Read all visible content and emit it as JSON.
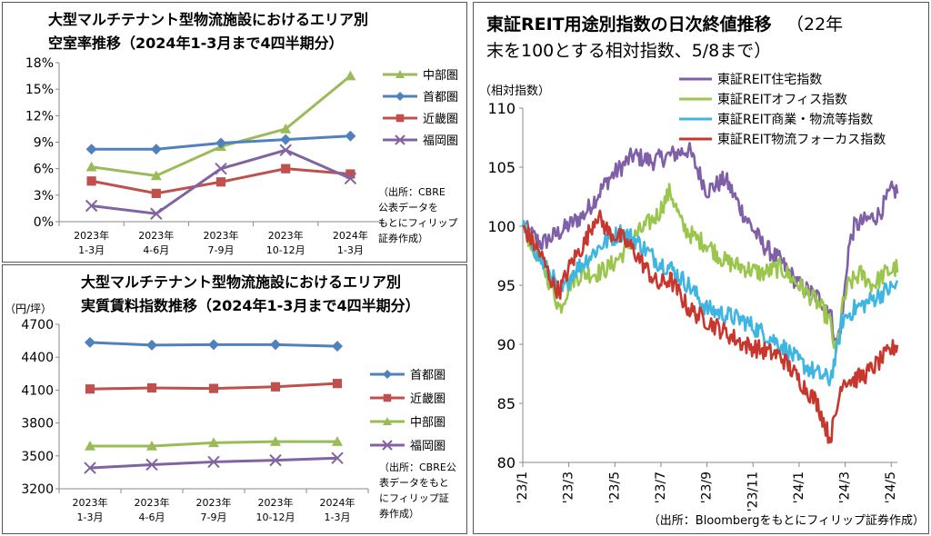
{
  "chart_data": [
    {
      "type": "line",
      "title": "大型マルチテナント型物流施設におけるエリア別",
      "subtitle": "空室率推移（2024年1-3月まで4四半期分）",
      "categories": [
        [
          "2023年",
          "1-3月"
        ],
        [
          "2023年",
          "4-6月"
        ],
        [
          "2023年",
          "7-9月"
        ],
        [
          "2023年",
          "10-12月"
        ],
        [
          "2024年",
          "1-3月"
        ]
      ],
      "y_ticks": [
        "18%",
        "15%",
        "12%",
        "9%",
        "6%",
        "3%",
        "0%"
      ],
      "ylim": [
        0,
        18
      ],
      "source": [
        "（出所：CBRE",
        "公表データを",
        "もとにフィリップ",
        "証券作成）"
      ],
      "series": [
        {
          "name": "中部圏",
          "color": "#9BBB59",
          "marker": "triangle",
          "values": [
            6.2,
            5.2,
            8.5,
            10.5,
            16.5
          ]
        },
        {
          "name": "首都圏",
          "color": "#4F81BD",
          "marker": "diamond",
          "values": [
            8.2,
            8.2,
            8.9,
            9.3,
            9.7
          ]
        },
        {
          "name": "近畿圏",
          "color": "#C0504D",
          "marker": "square",
          "values": [
            4.6,
            3.2,
            4.5,
            6.0,
            5.4
          ]
        },
        {
          "name": "福岡圏",
          "color": "#8064A2",
          "marker": "x",
          "values": [
            1.8,
            0.9,
            6.0,
            8.1,
            4.9
          ]
        }
      ]
    },
    {
      "type": "line",
      "title": "大型マルチテナント型物流施設におけるエリア別",
      "subtitle": "実質賃料指数推移（2024年1-3月まで4四半期分）",
      "ylabel": "（円/坪）",
      "categories": [
        [
          "2023年",
          "1-3月"
        ],
        [
          "2023年",
          "4-6月"
        ],
        [
          "2023年",
          "7-9月"
        ],
        [
          "2023年",
          "10-12月"
        ],
        [
          "2024年",
          "1-3月"
        ]
      ],
      "y_ticks": [
        "4700",
        "4400",
        "4100",
        "3800",
        "3500",
        "3200"
      ],
      "ylim": [
        3200,
        4700
      ],
      "source": [
        "（出所：CBRE公",
        "表データをもと",
        "にフィリップ証",
        "券作成）"
      ],
      "series": [
        {
          "name": "首都圏",
          "color": "#4F81BD",
          "marker": "diamond",
          "values": [
            4535,
            4510,
            4515,
            4515,
            4500
          ]
        },
        {
          "name": "近畿圏",
          "color": "#C0504D",
          "marker": "square",
          "values": [
            4110,
            4120,
            4115,
            4130,
            4160
          ]
        },
        {
          "name": "中部圏",
          "color": "#9BBB59",
          "marker": "triangle",
          "values": [
            3590,
            3590,
            3620,
            3630,
            3630
          ]
        },
        {
          "name": "福岡圏",
          "color": "#8064A2",
          "marker": "x",
          "values": [
            3390,
            3420,
            3445,
            3460,
            3480
          ]
        }
      ]
    },
    {
      "type": "line",
      "title_main": "東証REIT用途別指数の日次終値推移",
      "title_rest": "（22年",
      "subtitle": "末を100とする相対指数、5/8まで）",
      "ylabel": "（相対指数）",
      "ylim": [
        80,
        110
      ],
      "y_ticks": [
        "110",
        "105",
        "100",
        "95",
        "90",
        "85",
        "80"
      ],
      "x_labels": [
        "'23/1",
        "'23/3",
        "'23/5",
        "'23/7",
        "'23/9",
        "'23/11",
        "'24/1",
        "'24/3",
        "'24/5"
      ],
      "source": "（出所：Bloombergをもとにフィリップ証券作成）",
      "series": [
        {
          "name": "東証REIT住宅指数",
          "color": "#7F5FA8",
          "anchors": [
            [
              0,
              100
            ],
            [
              3,
              98.5
            ],
            [
              6,
              99.5
            ],
            [
              10,
              101
            ],
            [
              14,
              104
            ],
            [
              18,
              106
            ],
            [
              21,
              105.5
            ],
            [
              24,
              106
            ],
            [
              27,
              106.5
            ],
            [
              30,
              103
            ],
            [
              33,
              104
            ],
            [
              36,
              101
            ],
            [
              39,
              98.5
            ],
            [
              42,
              97
            ],
            [
              45,
              95
            ],
            [
              48,
              94
            ],
            [
              50,
              93
            ],
            [
              51,
              90
            ],
            [
              52,
              92
            ],
            [
              53,
              98
            ],
            [
              54,
              100
            ],
            [
              56,
              100.5
            ],
            [
              58,
              101
            ],
            [
              60,
              103
            ],
            [
              61,
              103
            ]
          ]
        },
        {
          "name": "東証REITオフィス指数",
          "color": "#9BC64E",
          "anchors": [
            [
              0,
              100
            ],
            [
              3,
              97
            ],
            [
              5,
              94.5
            ],
            [
              6,
              93
            ],
            [
              8,
              95.5
            ],
            [
              10,
              96
            ],
            [
              12,
              96
            ],
            [
              14,
              96.5
            ],
            [
              16,
              97.5
            ],
            [
              18,
              99
            ],
            [
              20,
              100
            ],
            [
              22,
              101
            ],
            [
              24,
              103
            ],
            [
              26,
              100
            ],
            [
              28,
              99
            ],
            [
              30,
              98.5
            ],
            [
              33,
              97
            ],
            [
              36,
              96.5
            ],
            [
              39,
              96
            ],
            [
              42,
              96.5
            ],
            [
              45,
              95
            ],
            [
              48,
              93.5
            ],
            [
              50,
              92
            ],
            [
              51,
              89
            ],
            [
              52,
              93
            ],
            [
              53,
              95
            ],
            [
              55,
              96
            ],
            [
              57,
              95
            ],
            [
              59,
              96
            ],
            [
              61,
              96.5
            ]
          ]
        },
        {
          "name": "東証REIT商業・物流等指数",
          "color": "#3FB6E1",
          "anchors": [
            [
              0,
              100
            ],
            [
              3,
              97
            ],
            [
              5,
              95.5
            ],
            [
              6,
              94
            ],
            [
              8,
              96
            ],
            [
              10,
              97
            ],
            [
              13,
              98.5
            ],
            [
              16,
              99.5
            ],
            [
              18,
              99
            ],
            [
              20,
              98
            ],
            [
              22,
              97
            ],
            [
              24,
              96.5
            ],
            [
              27,
              95
            ],
            [
              30,
              93
            ],
            [
              33,
              92.5
            ],
            [
              36,
              92
            ],
            [
              39,
              91
            ],
            [
              42,
              90
            ],
            [
              45,
              88.5
            ],
            [
              48,
              87.5
            ],
            [
              50,
              87
            ],
            [
              51,
              89
            ],
            [
              52,
              92
            ],
            [
              54,
              93
            ],
            [
              56,
              93.5
            ],
            [
              59,
              94.5
            ],
            [
              61,
              95
            ]
          ]
        },
        {
          "name": "東証REIT物流フォーカス指数",
          "color": "#C8372D",
          "anchors": [
            [
              0,
              100
            ],
            [
              3,
              97.5
            ],
            [
              5,
              95
            ],
            [
              6,
              94.5
            ],
            [
              8,
              97
            ],
            [
              10,
              98.5
            ],
            [
              12,
              101
            ],
            [
              14,
              99.5
            ],
            [
              16,
              99
            ],
            [
              18,
              98
            ],
            [
              20,
              96.5
            ],
            [
              22,
              95
            ],
            [
              24,
              95.5
            ],
            [
              27,
              93
            ],
            [
              30,
              92
            ],
            [
              33,
              91
            ],
            [
              36,
              90
            ],
            [
              39,
              89.5
            ],
            [
              42,
              89
            ],
            [
              45,
              87
            ],
            [
              48,
              85
            ],
            [
              49,
              83.5
            ],
            [
              50,
              82
            ],
            [
              51,
              84
            ],
            [
              52,
              87
            ],
            [
              54,
              87
            ],
            [
              56,
              87.5
            ],
            [
              59,
              89
            ],
            [
              61,
              90
            ]
          ]
        }
      ]
    }
  ]
}
